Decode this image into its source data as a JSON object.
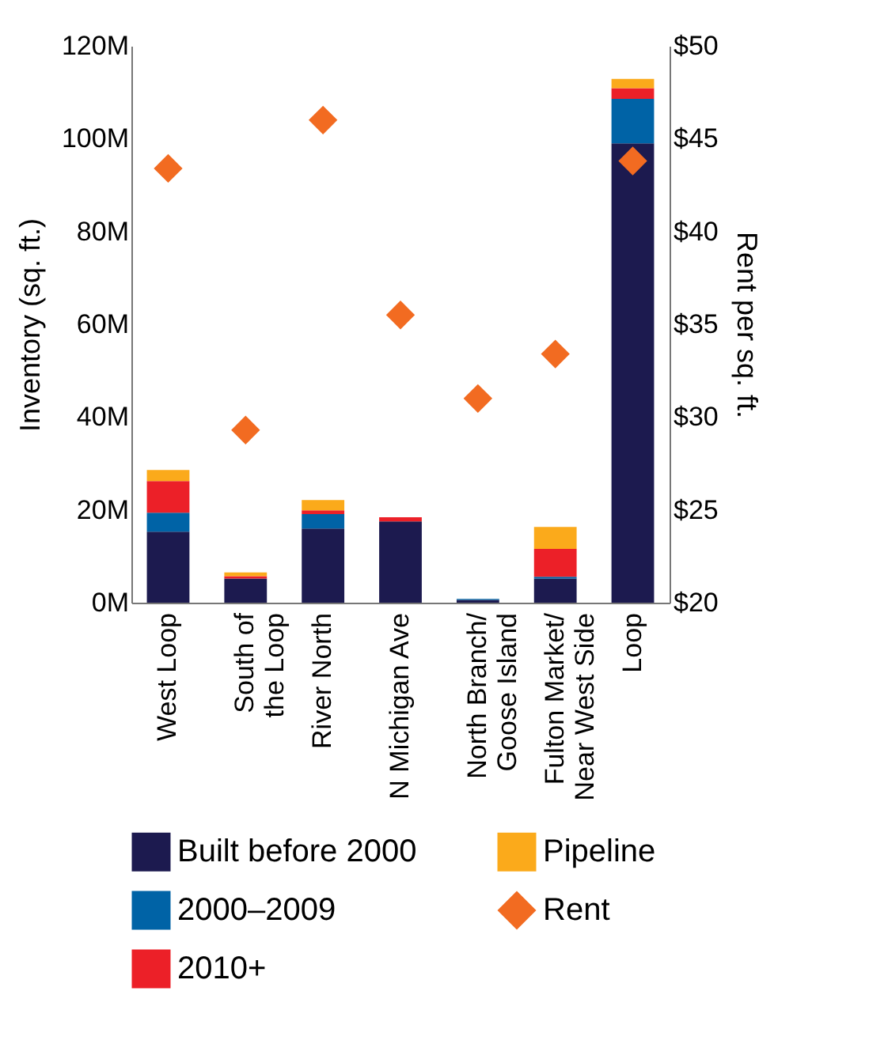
{
  "chart_data": {
    "type": "bar",
    "stacked": true,
    "categories": [
      "West Loop",
      "South of the Loop",
      "River North",
      "N Michigan Ave",
      "North Branch/ Goose Island",
      "Fulton Market/ Near West Side",
      "Loop"
    ],
    "ylabel": "Inventory (sq. ft.)",
    "y2label": "Rent per sq. ft.",
    "ylim": [
      0,
      120000000
    ],
    "yticks": [
      {
        "value": 0,
        "label": "0M"
      },
      {
        "value": 20000000,
        "label": "20M"
      },
      {
        "value": 40000000,
        "label": "40M"
      },
      {
        "value": 60000000,
        "label": "60M"
      },
      {
        "value": 80000000,
        "label": "80M"
      },
      {
        "value": 100000000,
        "label": "100M"
      },
      {
        "value": 120000000,
        "label": "120M"
      }
    ],
    "y2lim": [
      20,
      50
    ],
    "y2ticks": [
      {
        "value": 20,
        "label": "$20"
      },
      {
        "value": 25,
        "label": "$25"
      },
      {
        "value": 30,
        "label": "$30"
      },
      {
        "value": 35,
        "label": "$35"
      },
      {
        "value": 40,
        "label": "$40"
      },
      {
        "value": 45,
        "label": "$45"
      },
      {
        "value": 50,
        "label": "$50"
      }
    ],
    "grid": false,
    "legend": "bottom",
    "series": [
      {
        "name": "Built before 2000",
        "color": "#1c1a4f",
        "values": [
          15300000,
          5200000,
          16000000,
          17500000,
          600000,
          5200000,
          99000000
        ]
      },
      {
        "name": "2000–2009",
        "color": "#0063a6",
        "values": [
          4100000,
          0,
          3100000,
          0,
          200000,
          400000,
          9600000
        ]
      },
      {
        "name": "2010+",
        "color": "#ec2028",
        "values": [
          6800000,
          500000,
          800000,
          900000,
          0,
          6000000,
          2300000
        ]
      },
      {
        "name": "Pipeline",
        "color": "#fbaa1b",
        "values": [
          2400000,
          800000,
          2200000,
          0,
          0,
          4700000,
          2000000
        ]
      },
      {
        "name": "Rent",
        "type": "scatter",
        "axis": "y2",
        "marker": "diamond",
        "color": "#f26b21",
        "values": [
          43.4,
          29.3,
          46.0,
          35.5,
          31.0,
          33.4,
          43.8
        ]
      }
    ]
  }
}
